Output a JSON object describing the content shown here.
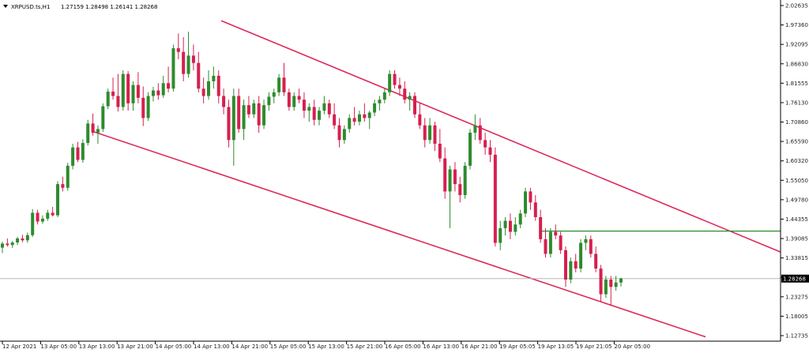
{
  "header": {
    "symbol": "XRPUSD.ts,H1",
    "ohlc": "1.27159 1.28498 1.26141 1.28268"
  },
  "colors": {
    "bull": "#2e8b2e",
    "bear": "#d61f4f",
    "channel": "#dc2a5a",
    "level": "#2e8b2e",
    "current": "#b8b8b8",
    "axis": "#000000",
    "tag_bg": "#000000"
  },
  "chart_data": {
    "type": "candlestick",
    "title": "XRPUSD.ts,H1",
    "ylim": [
      1.12735,
      2.02635
    ],
    "y_ticks": [
      "2.02635",
      "1.97360",
      "1.92095",
      "1.86830",
      "1.81555",
      "1.76130",
      "1.70860",
      "1.65590",
      "1.60320",
      "1.55050",
      "1.49780",
      "1.44355",
      "1.39085",
      "1.33815",
      "1.28268",
      "1.23275",
      "1.18005",
      "1.12735"
    ],
    "x_ticks": [
      "12 Apr 2021",
      "13 Apr 05:00",
      "13 Apr 13:00",
      "13 Apr 21:00",
      "14 Apr 05:00",
      "14 Apr 13:00",
      "14 Apr 21:00",
      "15 Apr 05:00",
      "15 Apr 13:00",
      "15 Apr 21:00",
      "16 Apr 05:00",
      "16 Apr 13:00",
      "16 Apr 21:00",
      "19 Apr 05:05",
      "19 Apr 13:05",
      "19 Apr 21:05",
      "20 Apr 05:00"
    ],
    "current_price": 1.28268,
    "current_price_label": "1.28268",
    "resistance_level": 1.412,
    "channel_upper": {
      "from": [
        0.0,
        1.985
      ],
      "to": [
        1.0,
        1.355
      ]
    },
    "channel_lower": {
      "from": [
        0.0,
        1.683
      ],
      "to": [
        1.0,
        1.124
      ]
    },
    "bars": [
      [
        1.367,
        1.383,
        1.352,
        1.378
      ],
      [
        1.378,
        1.392,
        1.37,
        1.374
      ],
      [
        1.374,
        1.385,
        1.366,
        1.381
      ],
      [
        1.381,
        1.396,
        1.374,
        1.392
      ],
      [
        1.392,
        1.402,
        1.382,
        1.387
      ],
      [
        1.387,
        1.408,
        1.38,
        1.401
      ],
      [
        1.401,
        1.472,
        1.396,
        1.462
      ],
      [
        1.462,
        1.47,
        1.43,
        1.438
      ],
      [
        1.438,
        1.455,
        1.432,
        1.446
      ],
      [
        1.446,
        1.47,
        1.44,
        1.462
      ],
      [
        1.462,
        1.478,
        1.452,
        1.455
      ],
      [
        1.455,
        1.548,
        1.45,
        1.54
      ],
      [
        1.54,
        1.56,
        1.52,
        1.53
      ],
      [
        1.53,
        1.598,
        1.522,
        1.59
      ],
      [
        1.59,
        1.65,
        1.58,
        1.64
      ],
      [
        1.64,
        1.655,
        1.6,
        1.606
      ],
      [
        1.606,
        1.662,
        1.598,
        1.652
      ],
      [
        1.652,
        1.715,
        1.645,
        1.705
      ],
      [
        1.705,
        1.732,
        1.672,
        1.68
      ],
      [
        1.68,
        1.7,
        1.65,
        1.69
      ],
      [
        1.69,
        1.76,
        1.682,
        1.752
      ],
      [
        1.752,
        1.8,
        1.744,
        1.792
      ],
      [
        1.792,
        1.83,
        1.77,
        1.78
      ],
      [
        1.78,
        1.84,
        1.738,
        1.75
      ],
      [
        1.75,
        1.85,
        1.74,
        1.84
      ],
      [
        1.84,
        1.848,
        1.74,
        1.76
      ],
      [
        1.76,
        1.82,
        1.74,
        1.81
      ],
      [
        1.81,
        1.845,
        1.76,
        1.775
      ],
      [
        1.775,
        1.806,
        1.698,
        1.72
      ],
      [
        1.72,
        1.79,
        1.712,
        1.78
      ],
      [
        1.78,
        1.805,
        1.765,
        1.795
      ],
      [
        1.795,
        1.815,
        1.77,
        1.782
      ],
      [
        1.782,
        1.835,
        1.775,
        1.815
      ],
      [
        1.815,
        1.86,
        1.79,
        1.8
      ],
      [
        1.8,
        1.92,
        1.792,
        1.91
      ],
      [
        1.91,
        1.95,
        1.88,
        1.9
      ],
      [
        1.9,
        1.94,
        1.82,
        1.84
      ],
      [
        1.84,
        1.955,
        1.83,
        1.89
      ],
      [
        1.89,
        1.92,
        1.85,
        1.87
      ],
      [
        1.87,
        1.9,
        1.79,
        1.8
      ],
      [
        1.8,
        1.83,
        1.76,
        1.78
      ],
      [
        1.78,
        1.85,
        1.77,
        1.82
      ],
      [
        1.82,
        1.86,
        1.8,
        1.835
      ],
      [
        1.835,
        1.85,
        1.76,
        1.78
      ],
      [
        1.78,
        1.8,
        1.73,
        1.75
      ],
      [
        1.75,
        1.77,
        1.64,
        1.66
      ],
      [
        1.66,
        1.8,
        1.59,
        1.78
      ],
      [
        1.78,
        1.8,
        1.68,
        1.69
      ],
      [
        1.69,
        1.77,
        1.66,
        1.755
      ],
      [
        1.755,
        1.78,
        1.72,
        1.73
      ],
      [
        1.73,
        1.77,
        1.72,
        1.76
      ],
      [
        1.76,
        1.78,
        1.68,
        1.7
      ],
      [
        1.7,
        1.77,
        1.69,
        1.755
      ],
      [
        1.755,
        1.79,
        1.74,
        1.778
      ],
      [
        1.778,
        1.8,
        1.76,
        1.79
      ],
      [
        1.79,
        1.84,
        1.78,
        1.83
      ],
      [
        1.83,
        1.87,
        1.78,
        1.79
      ],
      [
        1.79,
        1.8,
        1.74,
        1.75
      ],
      [
        1.75,
        1.79,
        1.74,
        1.78
      ],
      [
        1.78,
        1.8,
        1.76,
        1.77
      ],
      [
        1.77,
        1.79,
        1.72,
        1.74
      ],
      [
        1.74,
        1.76,
        1.71,
        1.75
      ],
      [
        1.75,
        1.77,
        1.7,
        1.715
      ],
      [
        1.715,
        1.75,
        1.7,
        1.74
      ],
      [
        1.74,
        1.78,
        1.73,
        1.76
      ],
      [
        1.76,
        1.77,
        1.72,
        1.73
      ],
      [
        1.73,
        1.76,
        1.69,
        1.7
      ],
      [
        1.7,
        1.72,
        1.64,
        1.66
      ],
      [
        1.66,
        1.7,
        1.65,
        1.69
      ],
      [
        1.69,
        1.73,
        1.68,
        1.72
      ],
      [
        1.72,
        1.75,
        1.7,
        1.71
      ],
      [
        1.71,
        1.74,
        1.7,
        1.73
      ],
      [
        1.73,
        1.76,
        1.71,
        1.72
      ],
      [
        1.72,
        1.74,
        1.69,
        1.735
      ],
      [
        1.735,
        1.77,
        1.725,
        1.76
      ],
      [
        1.76,
        1.78,
        1.74,
        1.77
      ],
      [
        1.77,
        1.8,
        1.76,
        1.79
      ],
      [
        1.79,
        1.85,
        1.78,
        1.84
      ],
      [
        1.84,
        1.85,
        1.8,
        1.81
      ],
      [
        1.81,
        1.83,
        1.78,
        1.8
      ],
      [
        1.8,
        1.82,
        1.76,
        1.77
      ],
      [
        1.77,
        1.79,
        1.74,
        1.78
      ],
      [
        1.78,
        1.79,
        1.72,
        1.73
      ],
      [
        1.73,
        1.76,
        1.69,
        1.7
      ],
      [
        1.7,
        1.72,
        1.64,
        1.66
      ],
      [
        1.66,
        1.72,
        1.65,
        1.7
      ],
      [
        1.7,
        1.71,
        1.63,
        1.65
      ],
      [
        1.65,
        1.69,
        1.6,
        1.61
      ],
      [
        1.61,
        1.64,
        1.5,
        1.52
      ],
      [
        1.52,
        1.59,
        1.42,
        1.58
      ],
      [
        1.58,
        1.6,
        1.52,
        1.54
      ],
      [
        1.54,
        1.56,
        1.49,
        1.51
      ],
      [
        1.51,
        1.6,
        1.5,
        1.59
      ],
      [
        1.59,
        1.69,
        1.58,
        1.68
      ],
      [
        1.68,
        1.73,
        1.66,
        1.7
      ],
      [
        1.7,
        1.72,
        1.65,
        1.66
      ],
      [
        1.66,
        1.68,
        1.62,
        1.64
      ],
      [
        1.64,
        1.66,
        1.6,
        1.62
      ],
      [
        1.62,
        1.64,
        1.37,
        1.38
      ],
      [
        1.38,
        1.44,
        1.36,
        1.42
      ],
      [
        1.42,
        1.45,
        1.4,
        1.44
      ],
      [
        1.44,
        1.46,
        1.39,
        1.41
      ],
      [
        1.41,
        1.45,
        1.4,
        1.43
      ],
      [
        1.43,
        1.47,
        1.42,
        1.46
      ],
      [
        1.46,
        1.53,
        1.45,
        1.52
      ],
      [
        1.52,
        1.53,
        1.47,
        1.49
      ],
      [
        1.49,
        1.51,
        1.44,
        1.45
      ],
      [
        1.45,
        1.47,
        1.38,
        1.39
      ],
      [
        1.39,
        1.42,
        1.34,
        1.35
      ],
      [
        1.35,
        1.42,
        1.34,
        1.41
      ],
      [
        1.41,
        1.43,
        1.39,
        1.4
      ],
      [
        1.4,
        1.41,
        1.35,
        1.36
      ],
      [
        1.36,
        1.37,
        1.26,
        1.28
      ],
      [
        1.28,
        1.34,
        1.27,
        1.33
      ],
      [
        1.33,
        1.35,
        1.3,
        1.31
      ],
      [
        1.31,
        1.39,
        1.3,
        1.38
      ],
      [
        1.38,
        1.4,
        1.36,
        1.39
      ],
      [
        1.39,
        1.4,
        1.34,
        1.35
      ],
      [
        1.35,
        1.37,
        1.3,
        1.31
      ],
      [
        1.31,
        1.32,
        1.22,
        1.24
      ],
      [
        1.24,
        1.29,
        1.23,
        1.28
      ],
      [
        1.28,
        1.29,
        1.21,
        1.26
      ],
      [
        1.26,
        1.29,
        1.25,
        1.272
      ],
      [
        1.272,
        1.285,
        1.261,
        1.283
      ]
    ]
  }
}
